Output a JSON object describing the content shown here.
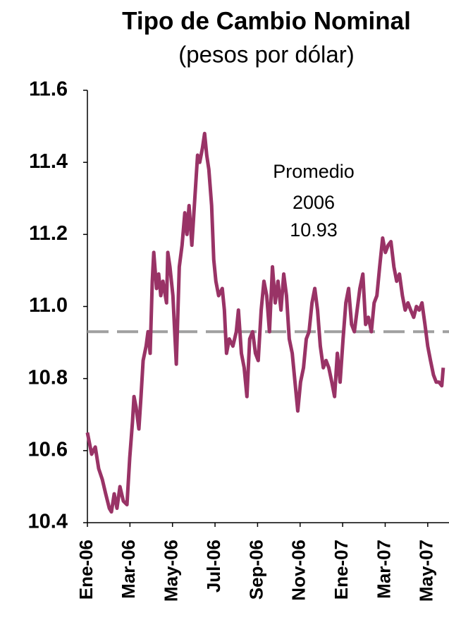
{
  "chart_data": {
    "type": "line",
    "title": "Tipo de Cambio Nominal",
    "subtitle": "(pesos por dólar)",
    "color": "#993366",
    "x": [
      0,
      0.2,
      0.37,
      0.53,
      0.7,
      0.86,
      1.03,
      1.13,
      1.26,
      1.39,
      1.53,
      1.69,
      1.86,
      1.99,
      2.12,
      2.19,
      2.29,
      2.42,
      2.52,
      2.62,
      2.76,
      2.85,
      2.95,
      3.05,
      3.12,
      3.25,
      3.35,
      3.45,
      3.55,
      3.72,
      3.78,
      3.88,
      4.02,
      4.18,
      4.32,
      4.45,
      4.58,
      4.68,
      4.78,
      4.91,
      5.05,
      5.18,
      5.28,
      5.41,
      5.51,
      5.61,
      5.71,
      5.84,
      5.94,
      6.04,
      6.17,
      6.34,
      6.44,
      6.54,
      6.67,
      6.84,
      7.0,
      7.1,
      7.24,
      7.37,
      7.5,
      7.63,
      7.77,
      7.9,
      8.03,
      8.17,
      8.3,
      8.43,
      8.56,
      8.7,
      8.83,
      8.96,
      9.1,
      9.23,
      9.36,
      9.49,
      9.63,
      9.76,
      9.89,
      10.02,
      10.16,
      10.29,
      10.42,
      10.56,
      10.69,
      10.82,
      10.95,
      11.09,
      11.22,
      11.35,
      11.49,
      11.62,
      11.75,
      11.88,
      12.02,
      12.15,
      12.28,
      12.42,
      12.55,
      12.68,
      12.81,
      12.95,
      13.08,
      13.21,
      13.35,
      13.48,
      13.61,
      13.74,
      13.88,
      14.01,
      14.14,
      14.27,
      14.41,
      14.54,
      14.67,
      14.81,
      14.94,
      15.07,
      15.2,
      15.34,
      15.47,
      15.6,
      15.73,
      15.87,
      16.0,
      16.13,
      16.27,
      16.4,
      16.53,
      16.66,
      16.73
    ],
    "values": [
      10.65,
      10.59,
      10.61,
      10.55,
      10.52,
      10.48,
      10.44,
      10.43,
      10.48,
      10.44,
      10.5,
      10.46,
      10.45,
      10.58,
      10.68,
      10.75,
      10.72,
      10.66,
      10.75,
      10.85,
      10.89,
      10.93,
      10.87,
      11.07,
      11.15,
      11.05,
      11.09,
      11.03,
      11.07,
      11.01,
      11.15,
      11.11,
      11.03,
      10.84,
      11.11,
      11.17,
      11.26,
      11.2,
      11.28,
      11.17,
      11.3,
      11.42,
      11.4,
      11.44,
      11.48,
      11.42,
      11.38,
      11.28,
      11.13,
      11.07,
      11.03,
      11.05,
      10.99,
      10.87,
      10.91,
      10.89,
      10.93,
      10.99,
      10.87,
      10.83,
      10.75,
      10.91,
      10.93,
      10.87,
      10.85,
      10.99,
      11.07,
      11.03,
      10.93,
      11.11,
      11.01,
      11.07,
      10.99,
      11.09,
      11.03,
      10.91,
      10.87,
      10.79,
      10.71,
      10.79,
      10.83,
      10.91,
      10.93,
      11.01,
      11.05,
      10.99,
      10.89,
      10.83,
      10.85,
      10.83,
      10.79,
      10.75,
      10.87,
      10.79,
      10.91,
      11.01,
      11.05,
      10.95,
      10.93,
      10.99,
      11.05,
      11.09,
      10.95,
      10.97,
      10.93,
      11.01,
      11.03,
      11.11,
      11.19,
      11.15,
      11.17,
      11.18,
      11.11,
      11.07,
      11.09,
      11.03,
      10.99,
      11.01,
      10.99,
      10.97,
      11.0,
      10.99,
      11.01,
      10.95,
      10.89,
      10.85,
      10.81,
      10.79,
      10.79,
      10.78,
      10.83
    ],
    "xlim": [
      0,
      17
    ],
    "xticks": [
      {
        "value": 0,
        "label": "Ene-06"
      },
      {
        "value": 2,
        "label": "Mar-06"
      },
      {
        "value": 4,
        "label": "May-06"
      },
      {
        "value": 6,
        "label": "Jul-06"
      },
      {
        "value": 8,
        "label": "Sep-06"
      },
      {
        "value": 10,
        "label": "Nov-06"
      },
      {
        "value": 12,
        "label": "Ene-07"
      },
      {
        "value": 14,
        "label": "Mar-07"
      },
      {
        "value": 16,
        "label": "May-07"
      }
    ],
    "ylim": [
      10.4,
      11.6
    ],
    "yticks": [
      10.4,
      10.6,
      10.8,
      {
        "value": 11,
        "label": "11.0"
      },
      11.2,
      11.4,
      11.6
    ],
    "reference_line": {
      "value": 10.93,
      "label": "10.93",
      "color": "#a0a0a0"
    },
    "annotation": [
      "Promedio",
      "2006"
    ]
  }
}
